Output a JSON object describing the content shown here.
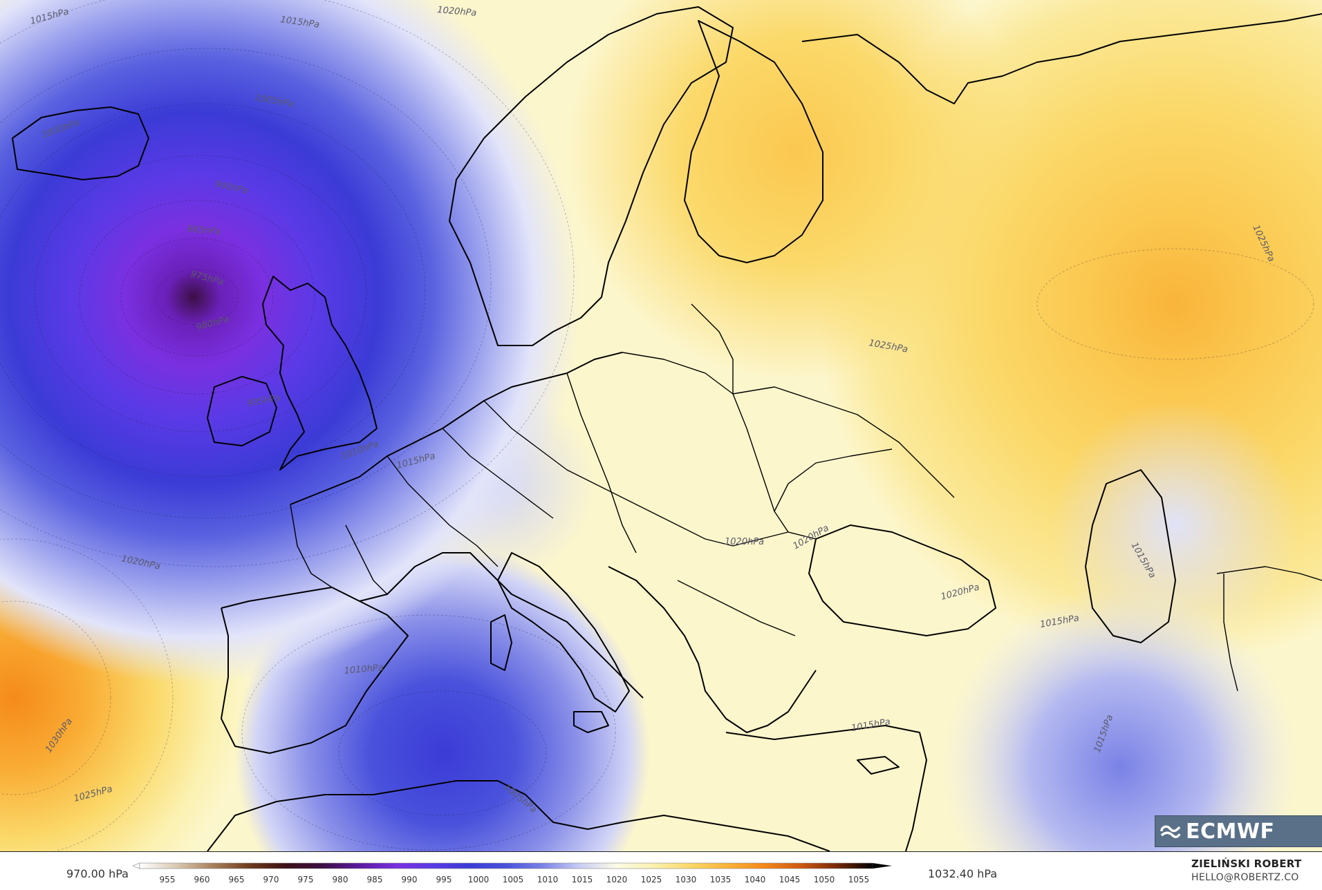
{
  "map": {
    "isobar_labels": [
      {
        "id": "l1015a",
        "text": "1015hPa"
      },
      {
        "id": "l1015b",
        "text": "1015hPa"
      },
      {
        "id": "l1020a",
        "text": "1020hPa"
      },
      {
        "id": "l1005a",
        "text": "1005hPa"
      },
      {
        "id": "l1000a",
        "text": "1000hPa"
      },
      {
        "id": "l990a",
        "text": "990hPa"
      },
      {
        "id": "l985a",
        "text": "985hPa"
      },
      {
        "id": "l975a",
        "text": "975hPa"
      },
      {
        "id": "l980a",
        "text": "980hPa"
      },
      {
        "id": "l995a",
        "text": "995hPa"
      },
      {
        "id": "l1010a",
        "text": "1010hPa"
      },
      {
        "id": "l1015c",
        "text": "1015hPa"
      },
      {
        "id": "l1020b",
        "text": "1020hPa"
      },
      {
        "id": "l1030a",
        "text": "1030hPa"
      },
      {
        "id": "l1025a",
        "text": "1025hPa"
      },
      {
        "id": "l1010b",
        "text": "1010hPa"
      },
      {
        "id": "l1005b",
        "text": "1005hPa"
      },
      {
        "id": "l1020c",
        "text": "1020hPa"
      },
      {
        "id": "l1020d",
        "text": "1020hPa"
      },
      {
        "id": "l1020e",
        "text": "1020hPa"
      },
      {
        "id": "l1025b",
        "text": "1025hPa"
      },
      {
        "id": "l1025c",
        "text": "1025hPa"
      },
      {
        "id": "l1015d",
        "text": "1015hPa"
      },
      {
        "id": "l1015e",
        "text": "1015hPa"
      },
      {
        "id": "l1015f",
        "text": "1015hPa"
      },
      {
        "id": "l1015g",
        "text": "1015hPa"
      }
    ]
  },
  "legend": {
    "min_label": "970.00 hPa",
    "max_label": "1032.40 hPa",
    "ticks": [
      "955",
      "960",
      "965",
      "970",
      "975",
      "980",
      "985",
      "990",
      "995",
      "1000",
      "1005",
      "1010",
      "1015",
      "1020",
      "1025",
      "1030",
      "1035",
      "1040",
      "1045",
      "1050",
      "1055"
    ],
    "colors": [
      "#ffffff",
      "#d9c9b3",
      "#a8805c",
      "#6e3a1c",
      "#3a0f14",
      "#3c0f45",
      "#5a1aa0",
      "#7a30e0",
      "#5a3ae6",
      "#3b3bd6",
      "#4a52dc",
      "#7a82e6",
      "#c8ccf4",
      "#fbfbe6",
      "#fbf1b0",
      "#fbd96a",
      "#f9b43a",
      "#f58a1a",
      "#d05a10",
      "#7a2a08",
      "#000000"
    ]
  },
  "author": {
    "name": "ZIELIŃSKI ROBERT",
    "email": "HELLO@ROBERTZ.CO"
  },
  "logo": {
    "text": "ECMWF",
    "icon": "ecmwf-logo-icon"
  }
}
